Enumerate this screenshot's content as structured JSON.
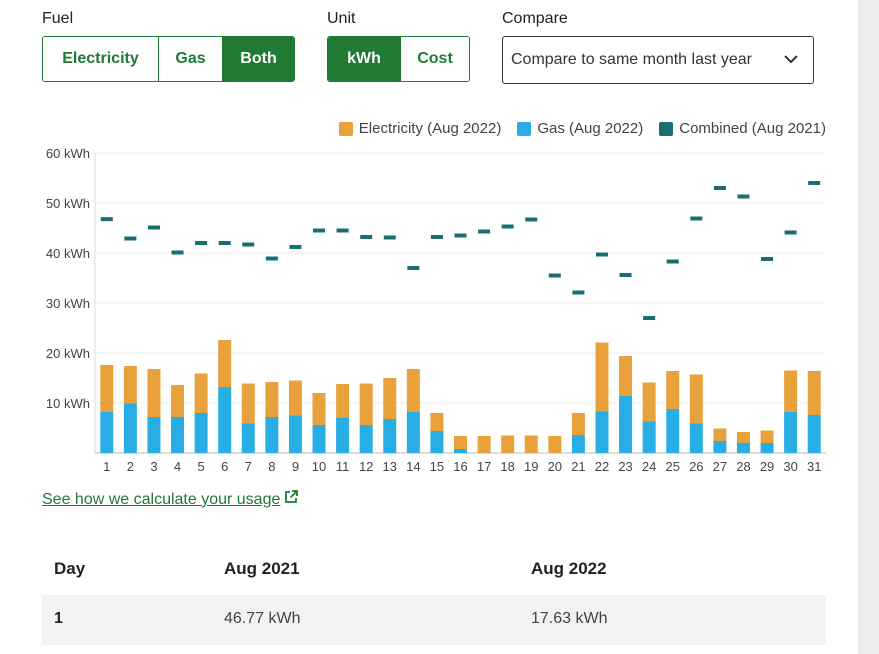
{
  "controls": {
    "fuel_label": "Fuel",
    "fuel_options": [
      "Electricity",
      "Gas",
      "Both"
    ],
    "fuel_selected": "Both",
    "unit_label": "Unit",
    "unit_options": [
      "kWh",
      "Cost"
    ],
    "unit_selected": "kWh",
    "compare_label": "Compare",
    "compare_value": "Compare to same month last year"
  },
  "legend": {
    "electricity": "Electricity (Aug 2022)",
    "gas": "Gas (Aug 2022)",
    "combined": "Combined (Aug 2021)"
  },
  "colors": {
    "electricity": "#e9a23b",
    "gas": "#28aee4",
    "combined": "#1a6e70",
    "accent": "#1f7a34"
  },
  "chart_data": {
    "type": "bar",
    "xlabel": "",
    "ylabel": "",
    "ylim": [
      0,
      60
    ],
    "y_ticks": [
      "",
      "10 kWh",
      "20 kWh",
      "30 kWh",
      "40 kWh",
      "50 kWh",
      "60 kWh"
    ],
    "categories": [
      "1",
      "2",
      "3",
      "4",
      "5",
      "6",
      "7",
      "8",
      "9",
      "10",
      "11",
      "12",
      "13",
      "14",
      "15",
      "16",
      "17",
      "18",
      "19",
      "20",
      "21",
      "22",
      "23",
      "24",
      "25",
      "26",
      "27",
      "28",
      "29",
      "30",
      "31"
    ],
    "series": [
      {
        "name": "Gas (Aug 2022)",
        "stack": "bar",
        "values": [
          8.2,
          9.9,
          7.2,
          7.2,
          8.0,
          13.2,
          5.9,
          7.2,
          7.5,
          5.6,
          7.0,
          5.6,
          6.8,
          8.2,
          4.4,
          0.8,
          0,
          0,
          0,
          0,
          3.6,
          8.3,
          11.4,
          6.3,
          8.8,
          5.9,
          2.4,
          2.0,
          2.0,
          8.2,
          7.6
        ]
      },
      {
        "name": "Electricity (Aug 2022)",
        "stack": "bar",
        "values": [
          9.4,
          7.5,
          9.6,
          6.4,
          7.9,
          9.4,
          8.0,
          7.0,
          7.0,
          6.4,
          6.8,
          8.3,
          8.2,
          8.6,
          3.6,
          2.6,
          3.4,
          3.5,
          3.5,
          3.4,
          4.4,
          13.8,
          8.0,
          7.8,
          7.6,
          9.8,
          2.5,
          2.2,
          2.5,
          8.3,
          8.8
        ]
      },
      {
        "name": "Combined (Aug 2021)",
        "type": "marker",
        "values": [
          46.77,
          42.9,
          45.1,
          40.1,
          42.0,
          42.0,
          41.7,
          38.9,
          41.2,
          44.5,
          44.5,
          43.2,
          43.1,
          37.0,
          43.2,
          43.5,
          44.3,
          45.3,
          46.7,
          35.5,
          32.1,
          39.7,
          35.6,
          27.0,
          38.3,
          46.9,
          53.0,
          51.3,
          38.8,
          44.1,
          54.0
        ]
      }
    ]
  },
  "link_text": "See how we calculate your usage",
  "table": {
    "headers": [
      "Day",
      "Aug 2021",
      "Aug 2022"
    ],
    "rows": [
      [
        "1",
        "46.77 kWh",
        "17.63 kWh"
      ]
    ]
  }
}
